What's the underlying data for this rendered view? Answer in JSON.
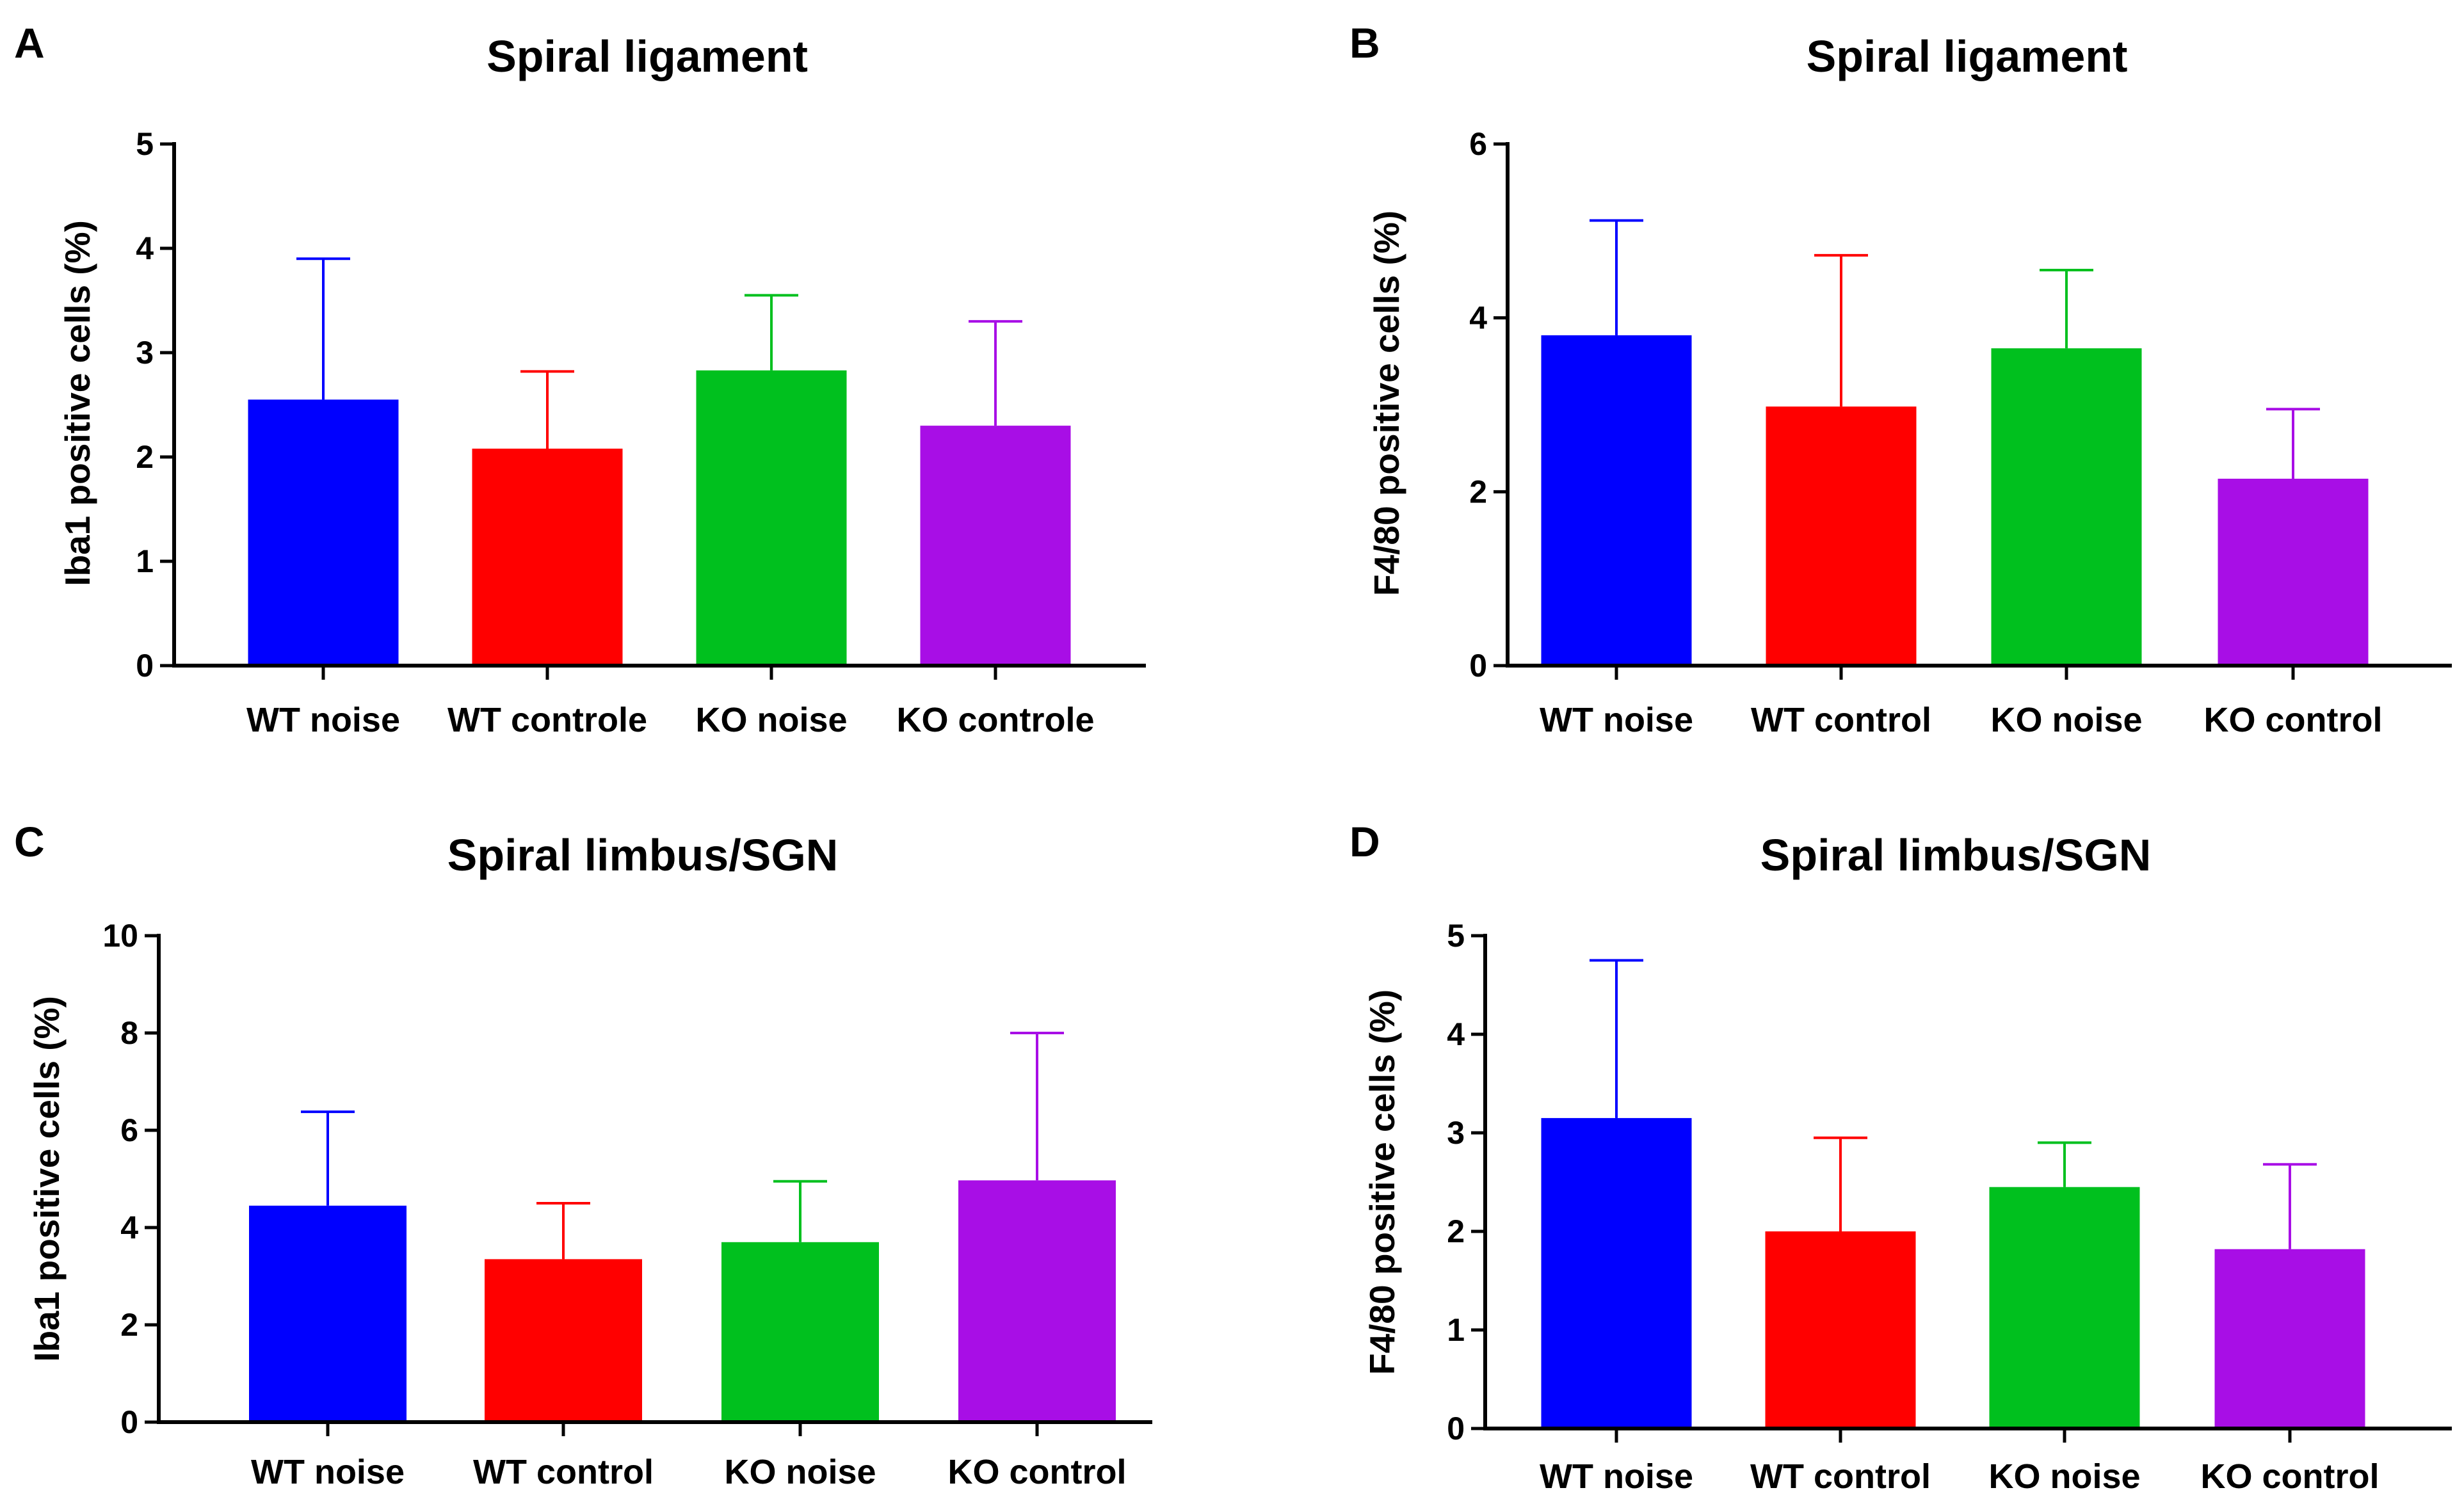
{
  "chart_data": [
    {
      "panel": "A",
      "type": "bar",
      "title": "Spiral ligament",
      "ylabel": "Iba1 positive cells (%)",
      "xlabel": "",
      "categories": [
        "WT noise",
        "WT controle",
        "KO noise",
        "KO controle"
      ],
      "values": [
        2.55,
        2.08,
        2.83,
        2.3
      ],
      "error_upper": [
        3.9,
        2.82,
        3.55,
        3.3
      ],
      "colors": [
        "#0000ff",
        "#ff0000",
        "#00c01e",
        "#a80ee6"
      ],
      "ylim": [
        0,
        5
      ],
      "yticks": [
        0,
        1,
        2,
        3,
        4,
        5
      ],
      "grid": false
    },
    {
      "panel": "B",
      "type": "bar",
      "title": "Spiral ligament",
      "ylabel": "F4/80 positive cells (%)",
      "xlabel": "",
      "categories": [
        "WT noise",
        "WT control",
        "KO noise",
        "KO control"
      ],
      "values": [
        3.8,
        2.98,
        3.65,
        2.15
      ],
      "error_upper": [
        5.12,
        4.72,
        4.55,
        2.95
      ],
      "colors": [
        "#0000ff",
        "#ff0000",
        "#00c01e",
        "#a80ee6"
      ],
      "ylim": [
        0,
        6
      ],
      "yticks": [
        0,
        2,
        4,
        6
      ],
      "grid": false
    },
    {
      "panel": "C",
      "type": "bar",
      "title": "Spiral limbus/SGN",
      "ylabel": "Iba1 positive cells (%)",
      "xlabel": "",
      "categories": [
        "WT noise",
        "WT control",
        "KO noise",
        "KO control"
      ],
      "values": [
        4.45,
        3.35,
        3.7,
        4.97
      ],
      "error_upper": [
        6.38,
        4.5,
        4.95,
        8.0
      ],
      "colors": [
        "#0000ff",
        "#ff0000",
        "#00c01e",
        "#a80ee6"
      ],
      "ylim": [
        0,
        10
      ],
      "yticks": [
        0,
        2,
        4,
        6,
        8,
        10
      ],
      "grid": false
    },
    {
      "panel": "D",
      "type": "bar",
      "title": "Spiral limbus/SGN",
      "ylabel": "F4/80 positive cells (%)",
      "xlabel": "",
      "categories": [
        "WT noise",
        "WT control",
        "KO noise",
        "KO control"
      ],
      "values": [
        3.15,
        2.0,
        2.45,
        1.82
      ],
      "error_upper": [
        4.75,
        2.95,
        2.9,
        2.68
      ],
      "colors": [
        "#0000ff",
        "#ff0000",
        "#00c01e",
        "#a80ee6"
      ],
      "ylim": [
        0,
        5
      ],
      "yticks": [
        0,
        1,
        2,
        3,
        4,
        5
      ],
      "grid": false
    }
  ]
}
